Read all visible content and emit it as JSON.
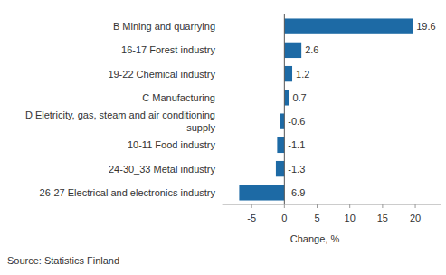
{
  "chart_data": {
    "type": "bar",
    "orientation": "horizontal",
    "categories": [
      "B Mining and quarrying",
      "16-17 Forest industry",
      "19-22 Chemical industry",
      "C Manufacturing",
      "D Eletricity, gas, steam and air conditioning supply",
      "10-11 Food industry",
      "24-30_33 Metal industry",
      "26-27 Electrical and electronics industry"
    ],
    "values": [
      19.6,
      2.6,
      1.2,
      0.7,
      -0.6,
      -1.1,
      -1.3,
      -6.9
    ],
    "color": "#1d6aa5",
    "xlim": [
      -9.5,
      24
    ],
    "xticks": [
      -5,
      0,
      5,
      10,
      15,
      20
    ],
    "x_label": "Change, %",
    "source": "Source: Statistics Finland",
    "grid": false,
    "data_labels": true
  }
}
